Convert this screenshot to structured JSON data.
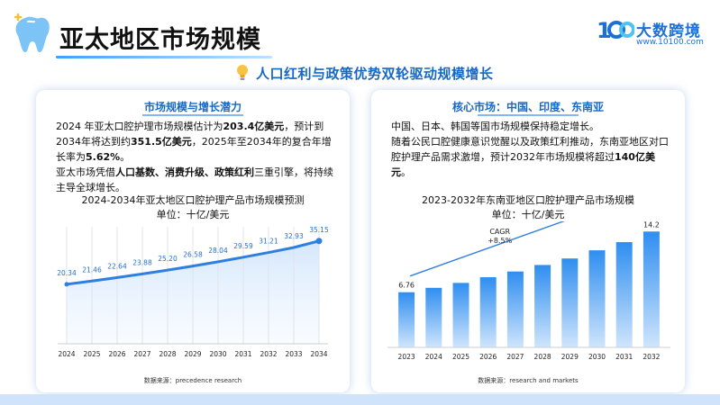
{
  "header": {
    "title": "亚太地区市场规模",
    "subtitle": "人口红利与政策优势双轮驱动规模增长"
  },
  "logo": {
    "name": "大数跨境",
    "url": "www.10100.com",
    "brand_color": "#1c6fd6"
  },
  "left_card": {
    "heading": "市场规模与增长潜力",
    "p1_a": "2024  年亚太口腔护理市场规模估计为",
    "p1_b": "203.4亿美元",
    "p1_c": "，预计到2034年将达到约",
    "p1_d": "351.5亿美元",
    "p1_e": "，2025年至2034年的复合年增长率为",
    "p1_f": "5.62%",
    "p1_g": "。",
    "p2_a": "亚太市场凭借",
    "p2_b": "人口基数、消费升级、政策红利",
    "p2_c": "三重引擎，将持续主导全球增长。",
    "chart_title": "2024-2034年亚太地区口腔护理产品市场规模预测",
    "chart_unit": "单位：十亿/美元",
    "source": "数据来源：precedence research"
  },
  "right_card": {
    "heading": "核心市场：中国、印度、东南亚",
    "p1": "中国、日本、韩国等国市场规模保持稳定增长。",
    "p2_a": "随着公民口腔健康意识觉醒以及政策红利推动，东南亚地区对口腔护理产品需求激增，预计2032年市场规模将超过",
    "p2_b": "140亿美元",
    "p2_c": "。",
    "chart_title": "2023-2032年东南亚地区口腔护理产品市场规模",
    "chart_unit": "单位：十亿/美元",
    "source": "数据来源：research and markets"
  },
  "chart_data": [
    {
      "type": "line",
      "title": "2024-2034年亚太地区口腔护理产品市场规模预测",
      "ylabel": "单位：十亿/美元",
      "x": [
        "2024",
        "2025",
        "2026",
        "2027",
        "2028",
        "2029",
        "2030",
        "2031",
        "2032",
        "2033",
        "2034"
      ],
      "values": [
        20.34,
        21.46,
        22.64,
        23.88,
        25.2,
        26.58,
        28.04,
        29.59,
        31.21,
        32.93,
        35.15
      ],
      "labels": [
        "20.34",
        "21.46",
        "22.64",
        "23.88",
        "25.20",
        "26.58",
        "28.04",
        "29.59",
        "31.21",
        "32.93",
        "35.15"
      ],
      "ylim": [
        0,
        40
      ],
      "grid": "vertical",
      "color": "#2f7fe0"
    },
    {
      "type": "bar",
      "title": "2023-2032年东南亚地区口腔护理产品市场规模",
      "ylabel": "单位：十亿/美元",
      "categories": [
        "2023",
        "2024",
        "2025",
        "2026",
        "2027",
        "2028",
        "2029",
        "2030",
        "2031",
        "2032"
      ],
      "values": [
        6.76,
        7.3,
        7.9,
        8.6,
        9.3,
        10.1,
        10.9,
        11.9,
        12.9,
        14.2
      ],
      "labels": {
        "first": "6.76",
        "last": "14.2"
      },
      "annotation": [
        "CAGR",
        "+8.5%"
      ],
      "ylim": [
        0,
        15
      ],
      "color": "#2f8ef0"
    }
  ]
}
